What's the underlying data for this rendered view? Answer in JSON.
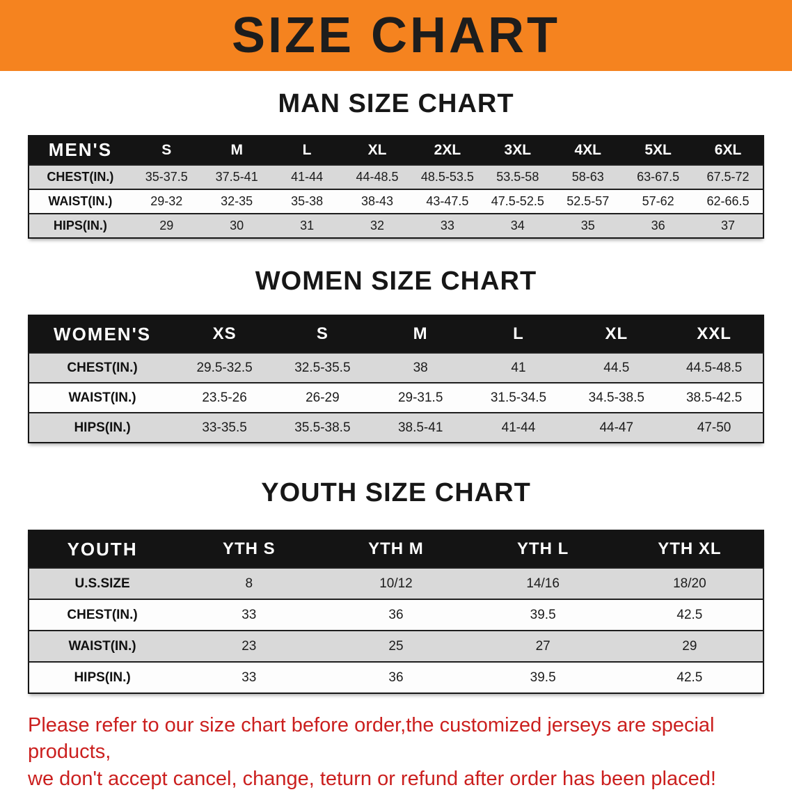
{
  "banner": {
    "title": "SIZE CHART"
  },
  "colors": {
    "banner_bg": "#f5831f",
    "header_bg": "#141414",
    "stripe_row_bg": "#d9d9d9",
    "disclaimer_text": "#cb1f1e"
  },
  "tables": [
    {
      "id": "men",
      "heading": "MAN SIZE CHART",
      "label_col_width": 14,
      "header": [
        "MEN'S",
        "S",
        "M",
        "L",
        "XL",
        "2XL",
        "3XL",
        "4XL",
        "5XL",
        "6XL"
      ],
      "rows": [
        {
          "label": "CHEST(IN.)",
          "values": [
            "35-37.5",
            "37.5-41",
            "41-44",
            "44-48.5",
            "48.5-53.5",
            "53.5-58",
            "58-63",
            "63-67.5",
            "67.5-72"
          ]
        },
        {
          "label": "WAIST(IN.)",
          "values": [
            "29-32",
            "32-35",
            "35-38",
            "38-43",
            "43-47.5",
            "47.5-52.5",
            "52.5-57",
            "57-62",
            "62-66.5"
          ]
        },
        {
          "label": "HIPS(IN.)",
          "values": [
            "29",
            "30",
            "31",
            "32",
            "33",
            "34",
            "35",
            "36",
            "37"
          ]
        }
      ]
    },
    {
      "id": "women",
      "heading": "WOMEN SIZE CHART",
      "label_col_width": 20,
      "header": [
        "WOMEN'S",
        "XS",
        "S",
        "M",
        "L",
        "XL",
        "XXL"
      ],
      "rows": [
        {
          "label": "CHEST(IN.)",
          "values": [
            "29.5-32.5",
            "32.5-35.5",
            "38",
            "41",
            "44.5",
            "44.5-48.5"
          ]
        },
        {
          "label": "WAIST(IN.)",
          "values": [
            "23.5-26",
            "26-29",
            "29-31.5",
            "31.5-34.5",
            "34.5-38.5",
            "38.5-42.5"
          ]
        },
        {
          "label": "HIPS(IN.)",
          "values": [
            "33-35.5",
            "35.5-38.5",
            "38.5-41",
            "41-44",
            "44-47",
            "47-50"
          ]
        }
      ]
    },
    {
      "id": "youth",
      "heading": "YOUTH SIZE CHART",
      "label_col_width": 20,
      "header": [
        "YOUTH",
        "YTH S",
        "YTH M",
        "YTH L",
        "YTH XL"
      ],
      "rows": [
        {
          "label": "U.S.SIZE",
          "values": [
            "8",
            "10/12",
            "14/16",
            "18/20"
          ]
        },
        {
          "label": "CHEST(IN.)",
          "values": [
            "33",
            "36",
            "39.5",
            "42.5"
          ]
        },
        {
          "label": "WAIST(IN.)",
          "values": [
            "23",
            "25",
            "27",
            "29"
          ]
        },
        {
          "label": "HIPS(IN.)",
          "values": [
            "33",
            "36",
            "39.5",
            "42.5"
          ]
        }
      ]
    }
  ],
  "disclaimer": {
    "line1": "Please refer to our size chart before order,the customized jerseys are special products,",
    "line2": "we don't accept cancel, change, teturn or refund after order has been placed!"
  }
}
